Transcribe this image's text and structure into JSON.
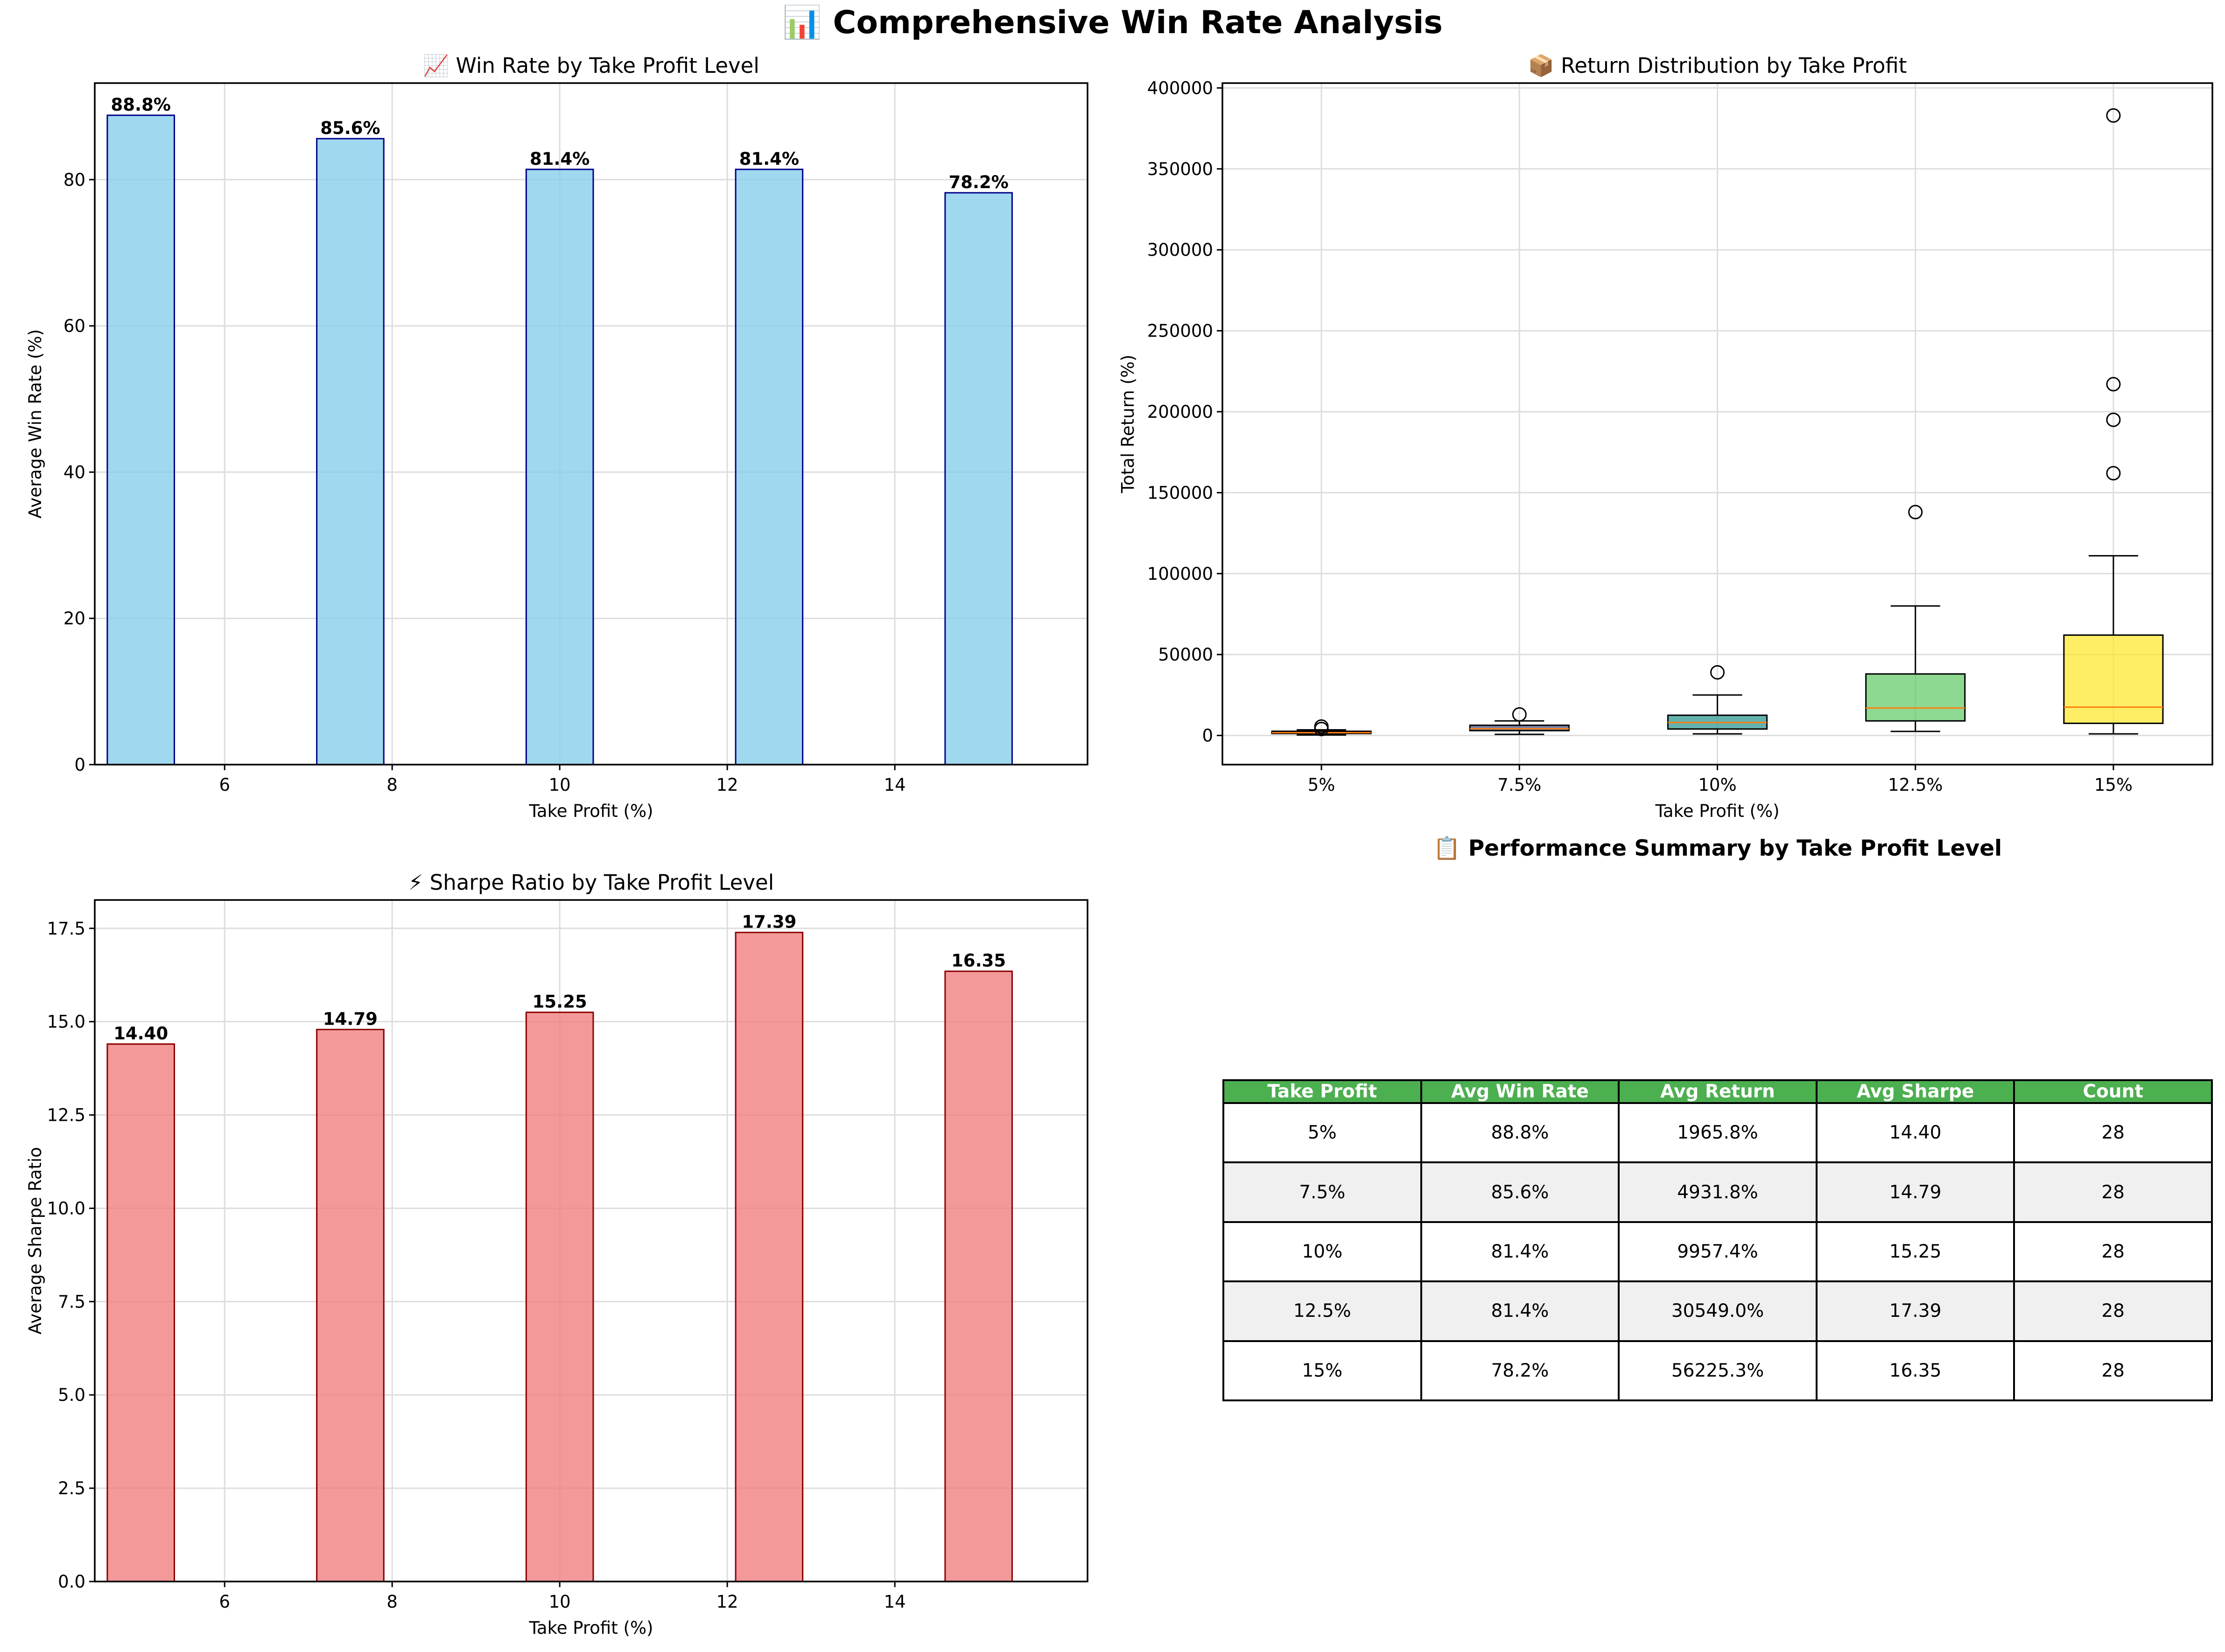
{
  "title": "📊 Comprehensive Win Rate Analysis",
  "colors": {
    "winrate_bar": "#87CEEB",
    "winrate_edge": "#00008B",
    "sharpe_bar": "#F08080",
    "sharpe_edge": "#8B0000",
    "box_fills": [
      "#440154",
      "#3b528b",
      "#21918c",
      "#5ec962",
      "#fde725"
    ],
    "median_line": "#FF7F0E",
    "table_header": "#4CAF50",
    "table_alt_row": "#F0F0F0",
    "grid": "#DDDDDD"
  },
  "chart_data": [
    {
      "type": "bar",
      "title": "📈 Win Rate by Take Profit Level",
      "xlabel": "Take Profit (%)",
      "ylabel": "Average Win Rate (%)",
      "x": [
        5,
        7.5,
        10,
        12.5,
        15
      ],
      "values": [
        88.8,
        85.6,
        81.4,
        81.4,
        78.2
      ],
      "value_labels": [
        "88.8%",
        "85.6%",
        "81.4%",
        "81.4%",
        "78.2%"
      ],
      "bar_width": 0.8,
      "xlim": [
        4.45,
        16.3
      ],
      "ylim": [
        0,
        93.2
      ],
      "xticks": [
        6,
        8,
        10,
        12,
        14
      ],
      "yticks": [
        0,
        20,
        40,
        60,
        80
      ],
      "grid": true
    },
    {
      "type": "box",
      "title": "📦 Return Distribution by Take Profit",
      "xlabel": "Take Profit (%)",
      "ylabel": "Total Return (%)",
      "categories": [
        "5%",
        "7.5%",
        "10%",
        "12.5%",
        "15%"
      ],
      "boxes": [
        {
          "whisker_low": 300,
          "q1": 1200,
          "median": 1700,
          "q3": 2600,
          "whisker_high": 3500,
          "outliers": [
            4000,
            5500
          ]
        },
        {
          "whisker_low": 700,
          "q1": 3000,
          "median": 4200,
          "q3": 6300,
          "whisker_high": 9000,
          "outliers": [
            13000
          ]
        },
        {
          "whisker_low": 1000,
          "q1": 4000,
          "median": 8000,
          "q3": 12500,
          "whisker_high": 25000,
          "outliers": [
            39000
          ]
        },
        {
          "whisker_low": 2500,
          "q1": 9000,
          "median": 17000,
          "q3": 38000,
          "whisker_high": 80000,
          "outliers": [
            138000
          ]
        },
        {
          "whisker_low": 1000,
          "q1": 7500,
          "median": 17500,
          "q3": 62000,
          "whisker_high": 111000,
          "outliers": [
            162000,
            195000,
            217000,
            383000
          ]
        }
      ],
      "ylim": [
        -18000,
        403000
      ],
      "yticks": [
        0,
        50000,
        100000,
        150000,
        200000,
        250000,
        300000,
        350000,
        400000
      ],
      "grid": true
    },
    {
      "type": "bar",
      "title": "⚡ Sharpe Ratio by Take Profit Level",
      "xlabel": "Take Profit (%)",
      "ylabel": "Average Sharpe Ratio",
      "x": [
        5,
        7.5,
        10,
        12.5,
        15
      ],
      "values": [
        14.4,
        14.79,
        15.25,
        17.39,
        16.35
      ],
      "value_labels": [
        "14.40",
        "14.79",
        "15.25",
        "17.39",
        "16.35"
      ],
      "bar_width": 0.8,
      "xlim": [
        4.45,
        16.3
      ],
      "ylim": [
        0,
        18.26
      ],
      "xticks": [
        6,
        8,
        10,
        12,
        14
      ],
      "yticks": [
        0.0,
        2.5,
        5.0,
        7.5,
        10.0,
        12.5,
        15.0,
        17.5
      ],
      "ytick_labels": [
        "0.0",
        "2.5",
        "5.0",
        "7.5",
        "10.0",
        "12.5",
        "15.0",
        "17.5"
      ],
      "grid": true
    },
    {
      "type": "table",
      "title": "📋 Performance Summary by Take Profit Level",
      "columns": [
        "Take Profit",
        "Avg Win Rate",
        "Avg Return",
        "Avg Sharpe",
        "Count"
      ],
      "rows": [
        [
          "5%",
          "88.8%",
          "1965.8%",
          "14.40",
          "28"
        ],
        [
          "7.5%",
          "85.6%",
          "4931.8%",
          "14.79",
          "28"
        ],
        [
          "10%",
          "81.4%",
          "9957.4%",
          "15.25",
          "28"
        ],
        [
          "12.5%",
          "81.4%",
          "30549.0%",
          "17.39",
          "28"
        ],
        [
          "15%",
          "78.2%",
          "56225.3%",
          "16.35",
          "28"
        ]
      ]
    }
  ]
}
